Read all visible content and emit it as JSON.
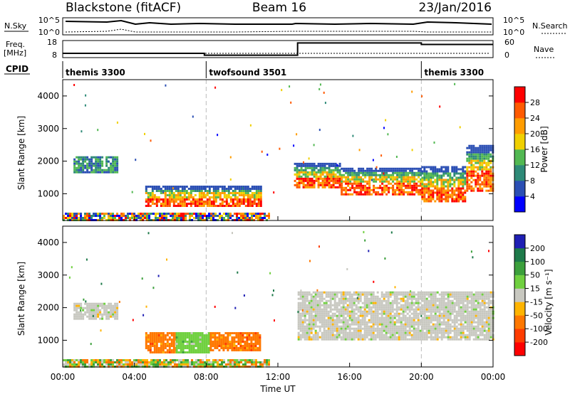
{
  "header": {
    "station": "Blackstone (fitACF)",
    "beam": "Beam 16",
    "date": "23/Jan/2016"
  },
  "chart_data": [
    {
      "type": "line",
      "panel": "noise",
      "left_label": "N.Sky",
      "right_label": "N.Search",
      "left_ticks": [
        "10^5",
        "10^0"
      ],
      "right_ticks": [
        "10^5",
        "10^0"
      ],
      "scale": "log"
    },
    {
      "type": "line",
      "panel": "frequency-nave",
      "left_label_lines": [
        "Freq.",
        "[MHz]"
      ],
      "right_label": "Nave",
      "left_ticks": [
        "18",
        "8"
      ],
      "right_ticks": [
        "60",
        "0"
      ],
      "series": [
        {
          "name": "Freq.",
          "x_hours": [
            0,
            7.9,
            13.1,
            20.0,
            24.0
          ],
          "values": [
            10.5,
            9.4,
            16.6,
            15.7,
            15.7
          ]
        }
      ]
    },
    {
      "type": "table",
      "panel": "cpid",
      "label": "CPID",
      "segments": [
        {
          "name": "themis 3300",
          "start_hour": 0,
          "end_hour": 8
        },
        {
          "name": "twofsound 3501",
          "start_hour": 8,
          "end_hour": 20
        },
        {
          "name": "themis 3300",
          "start_hour": 20,
          "end_hour": 24
        }
      ]
    },
    {
      "type": "heatmap",
      "panel": "power",
      "ylabel": "Slant Range [km]",
      "yticks": [
        1000,
        2000,
        3000,
        4000
      ],
      "ylim": [
        180,
        4500
      ],
      "colorbar_label": "Power [dB]",
      "colorbar_ticks": [
        4,
        8,
        12,
        16,
        20,
        24,
        28
      ],
      "colorbar_range": [
        0,
        32
      ],
      "colors": [
        "#0000ff",
        "#2b4fb4",
        "#2e8a78",
        "#52b852",
        "#f0d000",
        "#ff9c00",
        "#ff5a00",
        "#ff0000"
      ],
      "echo_bands": [
        {
          "x": [
            0.6,
            3.0
          ],
          "range_km": [
            1650,
            2150
          ],
          "level": "weak"
        },
        {
          "x": [
            4.6,
            7.9
          ],
          "range_km": [
            620,
            1250
          ],
          "level": "strong"
        },
        {
          "x": [
            7.9,
            11.0
          ],
          "range_km": [
            650,
            1250
          ],
          "level": "strong"
        },
        {
          "x": [
            12.9,
            15.5
          ],
          "range_km": [
            1200,
            1950
          ],
          "level": "strong"
        },
        {
          "x": [
            15.5,
            20.0
          ],
          "range_km": [
            1000,
            1800
          ],
          "level": "strong"
        },
        {
          "x": [
            20.0,
            22.5
          ],
          "range_km": [
            750,
            1850
          ],
          "level": "strong"
        },
        {
          "x": [
            22.5,
            24.0
          ],
          "range_km": [
            1100,
            2500
          ],
          "level": "strong"
        },
        {
          "x": [
            0.0,
            11.5
          ],
          "range_km": [
            180,
            420
          ],
          "level": "mixed"
        }
      ]
    },
    {
      "type": "heatmap",
      "panel": "velocity",
      "ylabel": "Slant Range [km]",
      "yticks": [
        1000,
        2000,
        3000,
        4000
      ],
      "ylim": [
        180,
        4500
      ],
      "xlabel": "Time UT",
      "xticks": [
        "00:00",
        "04:00",
        "08:00",
        "12:00",
        "16:00",
        "20:00",
        "00:00"
      ],
      "xlim_hours": [
        0,
        24
      ],
      "colorbar_label": "Velocity [m s⁻¹]",
      "colorbar_ticks": [
        200,
        100,
        50,
        15,
        -15,
        -50,
        -100,
        -200
      ],
      "colors": [
        "#1f1fb4",
        "#1e7a4a",
        "#3ca03c",
        "#70d040",
        "#c8c8c0",
        "#ffb400",
        "#ff7800",
        "#ff3c00",
        "#ff0000"
      ],
      "echo_bands": [
        {
          "x": [
            0.6,
            3.0
          ],
          "range_km": [
            1650,
            2150
          ],
          "velocity": "grey"
        },
        {
          "x": [
            4.6,
            6.3
          ],
          "range_km": [
            650,
            1250
          ],
          "velocity": "orange"
        },
        {
          "x": [
            6.3,
            8.2
          ],
          "range_km": [
            620,
            1250
          ],
          "velocity": "green"
        },
        {
          "x": [
            8.2,
            11.0
          ],
          "range_km": [
            700,
            1250
          ],
          "velocity": "orange"
        },
        {
          "x": [
            13.1,
            24.0
          ],
          "range_km": [
            1000,
            2500
          ],
          "velocity": "grey"
        },
        {
          "x": [
            0.0,
            11.5
          ],
          "range_km": [
            180,
            420
          ],
          "velocity": "mixed"
        }
      ]
    }
  ]
}
